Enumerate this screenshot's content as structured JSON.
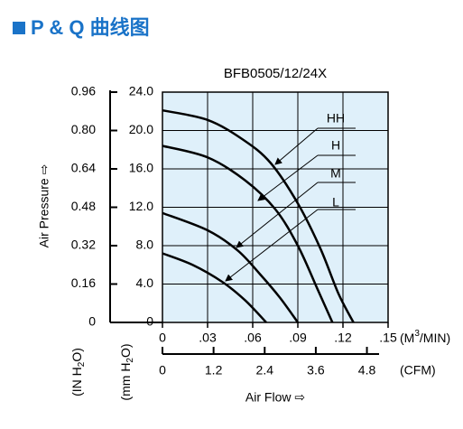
{
  "header": {
    "title": "P & Q 曲线图"
  },
  "chart_data": {
    "type": "line",
    "title": "BFB0505/12/24X",
    "y_label": "Air Pressure ⇨",
    "x_label": "Air Flow ⇨",
    "y_unit": {
      "text": "(mm H",
      "sub": "2",
      "tail": "O)"
    },
    "y2_unit": {
      "text": "(IN H",
      "sub": "2",
      "tail": "O)"
    },
    "x_unit": {
      "text": "(M",
      "sup": "3",
      "tail": "/MIN)"
    },
    "x2_unit": "(CFM)",
    "xlim": [
      0,
      0.15
    ],
    "xticks": [
      0,
      {
        "value": 0.03,
        "label": ".03"
      },
      {
        "value": 0.06,
        "label": ".06"
      },
      {
        "value": 0.09,
        "label": ".09"
      },
      {
        "value": 0.12,
        "label": ".12"
      },
      {
        "value": 0.15,
        "label": ".15"
      }
    ],
    "x2lim": [
      0,
      5.297
    ],
    "x2ticks": [
      0,
      1.2,
      2.4,
      3.6,
      4.8
    ],
    "ylim": [
      0,
      24
    ],
    "yticks": [
      0,
      {
        "value": 4,
        "label": "4.0"
      },
      {
        "value": 8,
        "label": "8.0"
      },
      {
        "value": 12,
        "label": "12.0"
      },
      {
        "value": 16,
        "label": "16.0"
      },
      {
        "value": 20,
        "label": "20.0"
      },
      {
        "value": 24,
        "label": "24.0"
      }
    ],
    "y2lim": [
      0,
      0.96
    ],
    "y2ticks": [
      0,
      0.16,
      0.32,
      0.48,
      0.64,
      {
        "value": 0.8,
        "label": "0.80"
      },
      0.96
    ],
    "grid": true,
    "background": "#dff0fa",
    "series": [
      {
        "name": "HH",
        "color": "#000000",
        "x": [
          0,
          0.03,
          0.054,
          0.072,
          0.09,
          0.105,
          0.117,
          0.127
        ],
        "values": [
          22.1,
          21.1,
          19.0,
          16.6,
          12.4,
          7.7,
          3.0,
          0
        ]
      },
      {
        "name": "H",
        "color": "#000000",
        "x": [
          0,
          0.03,
          0.055,
          0.075,
          0.09,
          0.103,
          0.113
        ],
        "values": [
          18.4,
          17.2,
          14.8,
          11.8,
          8.0,
          3.5,
          0
        ]
      },
      {
        "name": "M",
        "color": "#000000",
        "x": [
          0,
          0.03,
          0.05,
          0.065,
          0.078,
          0.09
        ],
        "values": [
          11.4,
          9.6,
          7.5,
          5.0,
          2.6,
          0
        ]
      },
      {
        "name": "L",
        "color": "#000000",
        "x": [
          0,
          0.02,
          0.04,
          0.055,
          0.069
        ],
        "values": [
          7.2,
          6.0,
          4.2,
          2.3,
          0
        ]
      }
    ]
  }
}
